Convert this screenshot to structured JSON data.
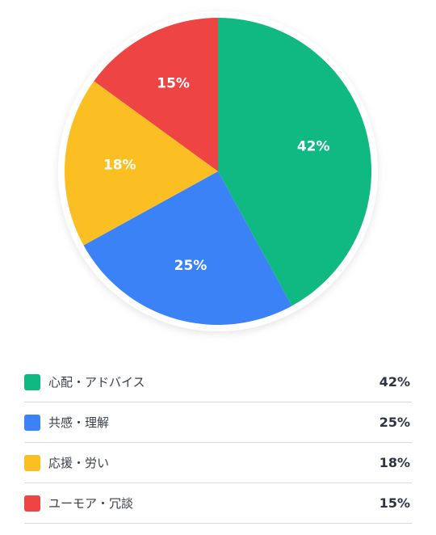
{
  "chart_data": {
    "type": "pie",
    "start": "top",
    "direction": "clockwise",
    "slices": [
      {
        "label": "心配・アドバイス",
        "value": 42,
        "display": "42%",
        "color": "#10b981"
      },
      {
        "label": "共感・理解",
        "value": 25,
        "display": "25%",
        "color": "#3b82f6"
      },
      {
        "label": "応援・労い",
        "value": 18,
        "display": "18%",
        "color": "#fbbf24"
      },
      {
        "label": "ユーモア・冗談",
        "value": 15,
        "display": "15%",
        "color": "#ef4444"
      }
    ]
  },
  "legend": {
    "items": [
      {
        "label": "心配・アドバイス",
        "value": "42%",
        "color": "#10b981"
      },
      {
        "label": "共感・理解",
        "value": "25%",
        "color": "#3b82f6"
      },
      {
        "label": "応援・労い",
        "value": "18%",
        "color": "#fbbf24"
      },
      {
        "label": "ユーモア・冗談",
        "value": "15%",
        "color": "#ef4444"
      }
    ]
  }
}
